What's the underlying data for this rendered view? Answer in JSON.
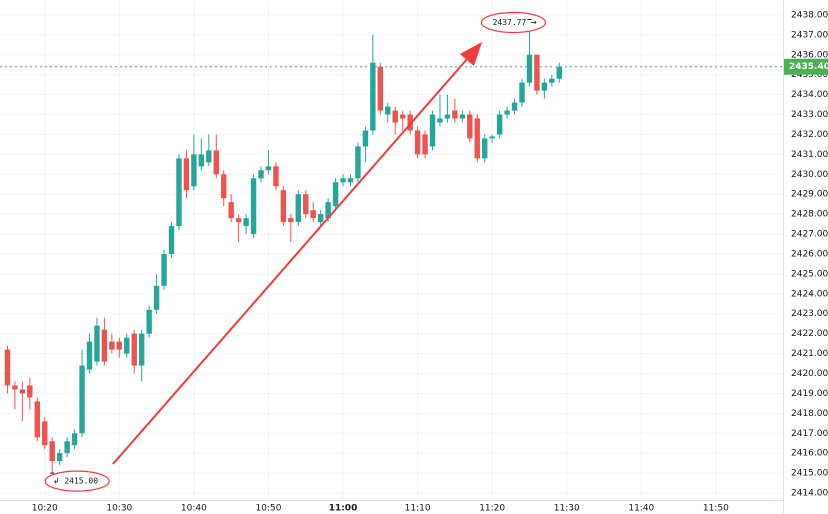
{
  "chart_data": {
    "type": "candlestick",
    "x": [
      "10:15",
      "10:16",
      "10:17",
      "10:18",
      "10:19",
      "10:20",
      "10:21",
      "10:22",
      "10:23",
      "10:24",
      "10:25",
      "10:26",
      "10:27",
      "10:28",
      "10:29",
      "10:30",
      "10:31",
      "10:32",
      "10:33",
      "10:34",
      "10:35",
      "10:36",
      "10:37",
      "10:38",
      "10:39",
      "10:40",
      "10:41",
      "10:42",
      "10:43",
      "10:44",
      "10:45",
      "10:46",
      "10:47",
      "10:48",
      "10:49",
      "10:50",
      "10:51",
      "10:52",
      "10:53",
      "10:54",
      "10:55",
      "10:56",
      "10:57",
      "10:58",
      "10:59",
      "11:00",
      "11:01",
      "11:02",
      "11:03",
      "11:04",
      "11:05",
      "11:06",
      "11:07",
      "11:08",
      "11:09",
      "11:10",
      "11:11",
      "11:12",
      "11:13",
      "11:14",
      "11:15",
      "11:16",
      "11:17",
      "11:18",
      "11:19",
      "11:20",
      "11:21",
      "11:22",
      "11:23",
      "11:24",
      "11:25",
      "11:26",
      "11:27",
      "11:28",
      "11:29"
    ],
    "open": [
      2421.2,
      2419.4,
      2419.2,
      2419.4,
      2418.6,
      2417.6,
      2416.6,
      2415.6,
      2416.0,
      2416.4,
      2417.0,
      2420.2,
      2420.6,
      2422.2,
      2421.6,
      2421.6,
      2421.0,
      2422.0,
      2420.4,
      2422.0,
      2423.2,
      2424.4,
      2426.0,
      2427.4,
      2430.8,
      2429.4,
      2430.4,
      2430.6,
      2431.2,
      2430.0,
      2428.6,
      2427.8,
      2427.4,
      2427.0,
      2429.8,
      2430.2,
      2430.4,
      2429.2,
      2427.8,
      2427.6,
      2429.0,
      2428.2,
      2427.6,
      2427.8,
      2428.4,
      2429.6,
      2429.6,
      2429.8,
      2431.4,
      2432.2,
      2435.4,
      2433.0,
      2433.2,
      2433.0,
      2433.0,
      2432.2,
      2432.0,
      2431.4,
      2432.6,
      2432.8,
      2433.2,
      2432.8,
      2433.0,
      2432.8,
      2430.8,
      2431.8,
      2432.0,
      2433.0,
      2433.2,
      2433.6,
      2434.6,
      2436.0,
      2434.2,
      2434.6,
      2434.8
    ],
    "high": [
      2421.4,
      2419.6,
      2419.6,
      2419.8,
      2418.8,
      2417.8,
      2416.8,
      2416.2,
      2416.8,
      2417.2,
      2421.2,
      2422.0,
      2422.8,
      2422.8,
      2422.0,
      2421.8,
      2422.0,
      2422.2,
      2422.2,
      2423.4,
      2425.0,
      2426.2,
      2427.6,
      2431.0,
      2431.2,
      2432.0,
      2431.8,
      2432.0,
      2432.0,
      2430.2,
      2429.0,
      2428.0,
      2428.0,
      2430.0,
      2430.4,
      2431.2,
      2430.6,
      2429.4,
      2428.0,
      2429.2,
      2429.2,
      2428.6,
      2428.2,
      2428.8,
      2429.8,
      2430.0,
      2430.0,
      2431.6,
      2432.4,
      2437.0,
      2435.6,
      2433.6,
      2433.4,
      2433.2,
      2433.2,
      2432.4,
      2432.2,
      2433.2,
      2434.0,
      2434.0,
      2433.8,
      2433.2,
      2433.2,
      2433.0,
      2432.0,
      2432.0,
      2433.2,
      2433.4,
      2433.8,
      2434.8,
      2437.77,
      2436.0,
      2434.8,
      2435.0,
      2435.6
    ],
    "low": [
      2419.0,
      2418.2,
      2417.6,
      2418.2,
      2416.6,
      2416.2,
      2415.0,
      2415.4,
      2415.8,
      2416.2,
      2416.8,
      2420.0,
      2420.4,
      2420.4,
      2421.0,
      2420.8,
      2420.8,
      2420.0,
      2419.6,
      2421.8,
      2423.0,
      2424.2,
      2425.8,
      2427.2,
      2428.8,
      2429.2,
      2430.2,
      2430.4,
      2429.8,
      2428.4,
      2427.6,
      2426.6,
      2427.0,
      2426.8,
      2429.6,
      2430.0,
      2429.2,
      2427.4,
      2426.6,
      2427.4,
      2427.8,
      2427.6,
      2427.4,
      2427.6,
      2428.2,
      2429.4,
      2429.4,
      2429.6,
      2430.6,
      2432.0,
      2433.0,
      2432.6,
      2432.0,
      2432.2,
      2432.0,
      2430.8,
      2430.8,
      2431.2,
      2432.4,
      2432.6,
      2432.6,
      2432.6,
      2431.6,
      2430.6,
      2430.6,
      2431.6,
      2431.8,
      2432.8,
      2433.0,
      2433.4,
      2434.4,
      2434.0,
      2433.8,
      2434.4,
      2434.6
    ],
    "close": [
      2419.4,
      2419.2,
      2419.0,
      2418.8,
      2416.8,
      2416.4,
      2415.6,
      2416.0,
      2416.6,
      2417.0,
      2420.4,
      2421.6,
      2422.4,
      2420.6,
      2421.2,
      2421.2,
      2421.8,
      2420.4,
      2422.0,
      2423.2,
      2424.4,
      2426.0,
      2427.4,
      2430.8,
      2429.2,
      2431.0,
      2431.0,
      2431.2,
      2430.0,
      2428.8,
      2427.8,
      2427.6,
      2427.8,
      2429.8,
      2430.2,
      2430.4,
      2429.4,
      2427.6,
      2427.6,
      2429.0,
      2428.0,
      2427.8,
      2428.0,
      2428.6,
      2429.6,
      2429.8,
      2429.8,
      2431.4,
      2432.2,
      2435.6,
      2433.2,
      2433.4,
      2432.6,
      2432.8,
      2432.2,
      2431.0,
      2431.0,
      2433.0,
      2432.8,
      2433.0,
      2432.8,
      2433.0,
      2431.8,
      2430.8,
      2431.8,
      2431.9,
      2433.0,
      2433.2,
      2433.6,
      2434.6,
      2436.0,
      2434.2,
      2434.6,
      2434.8,
      2435.4
    ],
    "up_color": "#26a69a",
    "down_color": "#ef5350",
    "xlim": [
      "10:14",
      "11:59"
    ],
    "xticks": [
      "10:20",
      "10:30",
      "10:40",
      "10:50",
      "11:00",
      "11:10",
      "11:20",
      "11:30",
      "11:40",
      "11:50"
    ],
    "ylim": [
      2413.65,
      2438.75
    ],
    "yticks": [
      {
        "value": 2414,
        "label": "2414.00"
      },
      {
        "value": 2415,
        "label": "2415.00"
      },
      {
        "value": 2416,
        "label": "2416.00"
      },
      {
        "value": 2417,
        "label": "2417.00"
      },
      {
        "value": 2418,
        "label": "2418.00"
      },
      {
        "value": 2419,
        "label": "2419.00"
      },
      {
        "value": 2420,
        "label": "2420.00"
      },
      {
        "value": 2421,
        "label": "2421.00"
      },
      {
        "value": 2422,
        "label": "2422.00"
      },
      {
        "value": 2423,
        "label": "2423.00"
      },
      {
        "value": 2424,
        "label": "2424.00"
      },
      {
        "value": 2425,
        "label": "2425.00"
      },
      {
        "value": 2426,
        "label": "2426.00"
      },
      {
        "value": 2427,
        "label": "2427.00"
      },
      {
        "value": 2428,
        "label": "2428.00"
      },
      {
        "value": 2429,
        "label": "2429.00"
      },
      {
        "value": 2430,
        "label": "2430.00"
      },
      {
        "value": 2431,
        "label": "2431.00"
      },
      {
        "value": 2432,
        "label": "2432.00"
      },
      {
        "value": 2433,
        "label": "2433.00"
      },
      {
        "value": 2434,
        "label": "2434.00"
      },
      {
        "value": 2435,
        "label": "2435.00"
      },
      {
        "value": 2436,
        "label": "2436.00"
      },
      {
        "value": 2437,
        "label": "2437.00"
      },
      {
        "value": 2438,
        "label": "2438.00"
      }
    ],
    "grid": true,
    "last_price": {
      "value": 2435.4,
      "label": "2435.40",
      "color": "#4caf50"
    },
    "annotations": [
      {
        "x": "11:25",
        "value": 2437.77,
        "label": "2437.77"
      },
      {
        "x": "10:21",
        "value": 2415,
        "label": "2415.00"
      }
    ]
  }
}
